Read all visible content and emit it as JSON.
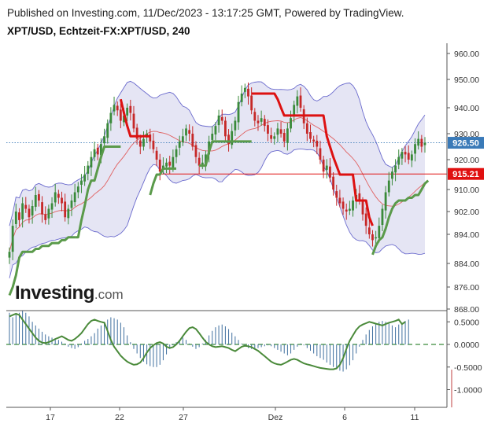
{
  "header": {
    "published": "Published on Investing.com, 11/Dec/2023 - 13:17:25 GMT, Powered by TradingView.",
    "symbol": "XPT/USD, Echtzeit-FX:XPT/USD, 240"
  },
  "logo": {
    "main": "Investing",
    "suffix": ".com"
  },
  "colors": {
    "bb_fill": "#dcdcf0",
    "bb_line": "#6a6acd",
    "basis": "#e06060",
    "up_line": "#5a9a4a",
    "down_line": "#dd1111",
    "candle_up": "#3a8a3a",
    "candle_down": "#c62828",
    "price_tag": "#3a7ab8",
    "level_tag": "#e01010",
    "osc_line": "#4a8a3a",
    "osc_hist": "#3f6f9f"
  },
  "chart_data": [
    {
      "type": "candlestick",
      "price_axis": {
        "ticks": [
          "960.00",
          "950.00",
          "940.00",
          "930.00",
          "920.00",
          "910.00",
          "902.00",
          "894.00",
          "884.00",
          "876.00",
          "868.00"
        ]
      },
      "time_axis": {
        "labels": [
          "17",
          "22",
          "27",
          "Dez",
          "6",
          "11"
        ]
      },
      "current_price": {
        "label": "926.50",
        "value": 926.5
      },
      "horizontal_level": {
        "label": "915.21",
        "value": 915.21
      },
      "candles_close": [
        888,
        897,
        902,
        899,
        905,
        903,
        900,
        904,
        908,
        906,
        901,
        899,
        903,
        905,
        909,
        907,
        905,
        900,
        903,
        906,
        909,
        911,
        913,
        915,
        918,
        921,
        924,
        922,
        926,
        929,
        934,
        938,
        941,
        939,
        935,
        937,
        940,
        938,
        932,
        928,
        925,
        928,
        930,
        927,
        924,
        920,
        916,
        918,
        919,
        918,
        921,
        924,
        927,
        929,
        932,
        930,
        925,
        921,
        918,
        919,
        922,
        927,
        930,
        933,
        937,
        935,
        929,
        926,
        931,
        935,
        942,
        945,
        947,
        944,
        939,
        935,
        934,
        936,
        933,
        930,
        928,
        929,
        932,
        930,
        927,
        932,
        936,
        941,
        944,
        940,
        934,
        930,
        928,
        927,
        925,
        920,
        916,
        918,
        914,
        910,
        907,
        905,
        903,
        902,
        903,
        906,
        908,
        906,
        901,
        897,
        894,
        892,
        893,
        897,
        903,
        909,
        913,
        916,
        918,
        921,
        923,
        922,
        920,
        922,
        926,
        928,
        925,
        926.5
      ],
      "supertrend_up_segments": [
        {
          "from": 0,
          "to": 20,
          "values": [
            873,
            876,
            880,
            886,
            888,
            888,
            888,
            888,
            889,
            889,
            890,
            890,
            890,
            891,
            891,
            891,
            892,
            892,
            893,
            893,
            893
          ]
        },
        {
          "from": 20,
          "to": 34,
          "values": [
            893,
            893,
            899,
            904,
            910,
            913,
            913,
            917,
            921,
            925,
            925,
            925,
            925,
            925,
            925
          ]
        },
        {
          "from": 43,
          "to": 51,
          "values": [
            908,
            912,
            915,
            915,
            917,
            917,
            917,
            917,
            917
          ]
        },
        {
          "from": 58,
          "to": 74,
          "values": [
            918,
            918,
            918,
            923,
            927,
            927,
            927,
            927,
            927,
            927,
            927,
            927,
            927,
            927,
            927,
            927,
            927
          ]
        },
        {
          "from": 111,
          "to": 128,
          "values": [
            887,
            890,
            892,
            893,
            896,
            900,
            903,
            905,
            906,
            906,
            906,
            907,
            907,
            908,
            908,
            910,
            912,
            913
          ]
        }
      ],
      "supertrend_down_segments": [
        {
          "from": 34,
          "to": 43,
          "values": [
            943,
            938,
            933,
            929,
            929,
            929,
            929,
            929,
            929,
            929
          ]
        },
        {
          "from": 74,
          "to": 111,
          "values": [
            945,
            945,
            945,
            945,
            945,
            945,
            945,
            945,
            943,
            940,
            937,
            937,
            937,
            937,
            937,
            937,
            937,
            937,
            937,
            937,
            937,
            937,
            937,
            929,
            925,
            921,
            918,
            915,
            915,
            915,
            915,
            915,
            906,
            906,
            906,
            906,
            900,
            897
          ]
        }
      ],
      "oscillator_axis": {
        "ticks": [
          "0.5000",
          "0.0000",
          "-0.5000",
          "-1.0000"
        ]
      },
      "oscillator_line": [
        0.62,
        0.65,
        0.68,
        0.65,
        0.55,
        0.45,
        0.35,
        0.25,
        0.15,
        0.08,
        0.04,
        0.03,
        0.05,
        0.08,
        0.12,
        0.15,
        0.18,
        0.14,
        0.1,
        0.08,
        0.12,
        0.18,
        0.25,
        0.35,
        0.45,
        0.52,
        0.55,
        0.52,
        0.5,
        0.48,
        0.3,
        0.1,
        -0.05,
        -0.15,
        -0.25,
        -0.32,
        -0.38,
        -0.42,
        -0.45,
        -0.44,
        -0.4,
        -0.3,
        -0.18,
        -0.08,
        -0.02,
        0.03,
        0.05,
        0.02,
        -0.05,
        -0.08,
        -0.06,
        0.0,
        0.08,
        0.18,
        0.28,
        0.36,
        0.38,
        0.34,
        0.25,
        0.15,
        0.06,
        0.0,
        -0.04,
        -0.06,
        -0.05,
        -0.04,
        -0.06,
        -0.08,
        -0.12,
        -0.15,
        -0.1,
        -0.05,
        -0.03,
        -0.04,
        -0.06,
        -0.1,
        -0.14,
        -0.2,
        -0.26,
        -0.32,
        -0.38,
        -0.42,
        -0.44,
        -0.45,
        -0.42,
        -0.38,
        -0.34,
        -0.32,
        -0.34,
        -0.38,
        -0.42,
        -0.44,
        -0.46,
        -0.48,
        -0.5,
        -0.52,
        -0.53,
        -0.54,
        -0.55,
        -0.55,
        -0.53,
        -0.45,
        -0.3,
        -0.1,
        0.08,
        0.2,
        0.32,
        0.4,
        0.44,
        0.47,
        0.5,
        0.48,
        0.46,
        0.44,
        0.42,
        0.45,
        0.48,
        0.5,
        0.52,
        0.55,
        0.45,
        0.5
      ],
      "oscillator_hist": [
        0.7,
        0.6,
        0.65,
        0.7,
        0.75,
        0.7,
        0.62,
        0.5,
        0.42,
        0.35,
        0.28,
        0.22,
        0.18,
        0.15,
        0.12,
        0.1,
        0.06,
        0.02,
        -0.05,
        -0.08,
        -0.1,
        -0.06,
        0.02,
        0.08,
        0.12,
        0.18,
        0.25,
        0.35,
        0.42,
        0.5,
        0.55,
        0.6,
        0.58,
        0.55,
        0.48,
        0.38,
        0.2,
        0.05,
        -0.1,
        -0.2,
        -0.3,
        -0.38,
        -0.44,
        -0.48,
        -0.5,
        -0.5,
        -0.45,
        -0.35,
        -0.22,
        -0.1,
        -0.02,
        0.05,
        0.1,
        0.15,
        0.1,
        0.02,
        -0.05,
        -0.1,
        -0.06,
        0.02,
        0.1,
        0.2,
        0.3,
        0.38,
        0.42,
        0.44,
        0.4,
        0.34,
        0.26,
        0.18,
        0.1,
        0.02,
        -0.04,
        -0.08,
        -0.1,
        -0.1,
        -0.08,
        -0.06,
        -0.04,
        -0.02,
        -0.04,
        -0.08,
        -0.12,
        -0.16,
        -0.2,
        -0.24,
        -0.2,
        -0.12,
        -0.05,
        0.02,
        -0.02,
        -0.08,
        -0.14,
        -0.2,
        -0.26,
        -0.3,
        -0.34,
        -0.4,
        -0.45,
        -0.5,
        -0.55,
        -0.58,
        -0.6,
        -0.55,
        -0.46,
        -0.35,
        -0.2,
        -0.05,
        0.1,
        0.22,
        0.32,
        0.4,
        0.46,
        0.5,
        0.52,
        0.5,
        0.46,
        0.42,
        0.38,
        0.44,
        0.48,
        0.52,
        0.55
      ]
    }
  ]
}
